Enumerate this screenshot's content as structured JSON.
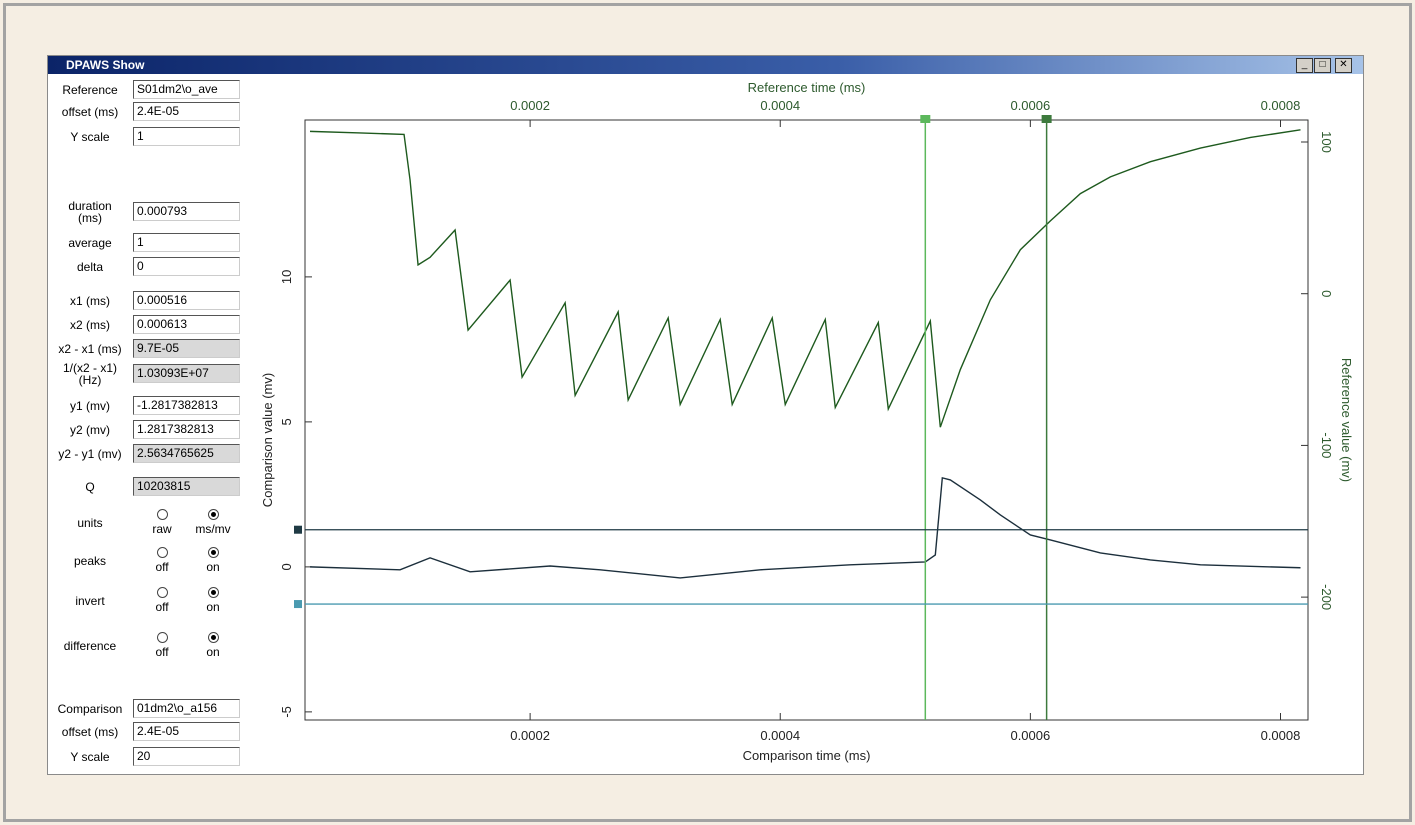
{
  "window_title": "DPAWS Show",
  "fields": [
    {
      "label": "Reference",
      "value": "S01dm2\\o_ave"
    },
    {
      "label": "offset (ms)",
      "value": "2.4E-05"
    },
    {
      "label": "Y scale",
      "value": "1"
    },
    {
      "label": "duration\n(ms)",
      "value": "0.000793"
    },
    {
      "label": "average",
      "value": "1"
    },
    {
      "label": "delta",
      "value": "0"
    },
    {
      "label": "x1 (ms)",
      "value": "0.000516"
    },
    {
      "label": "x2 (ms)",
      "value": "0.000613"
    },
    {
      "label": "x2 - x1 (ms)",
      "value": "9.7E-05",
      "readonly": true
    },
    {
      "label": "1/(x2 - x1)\n(Hz)",
      "value": "1.03093E+07",
      "readonly": true
    },
    {
      "label": "y1 (mv)",
      "value": "-1.2817382813"
    },
    {
      "label": "y2 (mv)",
      "value": "1.2817382813"
    },
    {
      "label": "y2 - y1 (mv)",
      "value": "2.5634765625",
      "readonly": true
    },
    {
      "label": "Q",
      "value": "10203815",
      "readonly": true
    },
    {
      "label": "Comparison",
      "value": "01dm2\\o_a156"
    },
    {
      "label": "offset (ms)",
      "value": "2.4E-05"
    },
    {
      "label": "Y scale",
      "value": "20"
    }
  ],
  "radios": [
    {
      "label": "units",
      "options": [
        "raw",
        "ms/mv"
      ],
      "selected": 1
    },
    {
      "label": "peaks",
      "options": [
        "off",
        "on"
      ],
      "selected": 1
    },
    {
      "label": "invert",
      "options": [
        "off",
        "on"
      ],
      "selected": 1
    },
    {
      "label": "difference",
      "options": [
        "off",
        "on"
      ],
      "selected": 1
    }
  ],
  "chart_data": {
    "type": "line",
    "x_label": "Comparison time (ms)",
    "x2_label": "Reference time (ms)",
    "y_label": "Comparison value (mv)",
    "y2_label": "Reference value (mv)",
    "xlim": [
      2e-05,
      0.000822
    ],
    "xticks": [
      0.0002,
      0.0004,
      0.0006,
      0.0008
    ],
    "ylim": [
      -5.28,
      15.41
    ],
    "yticks": [
      -5,
      0,
      5,
      10
    ],
    "y2lim": [
      -281,
      114.5
    ],
    "y2ticks": [
      -200,
      -100,
      0,
      100
    ],
    "series": [
      {
        "color": "#1e5a1e",
        "axis": "y2",
        "x": [
          2.4e-05,
          6.4e-05,
          9.92e-05,
          0.000104,
          0.0001104,
          0.00012,
          0.00014,
          0.0001504,
          0.000184,
          0.0001936,
          0.000228,
          0.000236,
          0.0002704,
          0.0002784,
          0.0003104,
          0.00032,
          0.000352,
          0.0003616,
          0.0003936,
          0.000404,
          0.000436,
          0.000444,
          0.0004784,
          0.0004864,
          0.00052,
          0.000528,
          0.000544,
          0.000568,
          0.000592,
          0.000616,
          0.00064,
          0.000664,
          0.000696,
          0.000736,
          0.000776,
          0.000816
        ],
        "values": [
          107,
          106,
          105,
          75,
          19,
          24,
          42,
          -24,
          9,
          -55,
          -6,
          -67,
          -12,
          -70,
          -16,
          -73,
          -17,
          -73,
          -16,
          -73,
          -17,
          -75,
          -19,
          -76,
          -18,
          -88,
          -50,
          -4,
          29,
          48,
          66,
          77,
          87,
          96,
          103,
          108
        ]
      },
      {
        "color": "#1c2f3c",
        "x": [
          2.4e-05,
          9.6e-05,
          0.00012,
          0.000152,
          0.000216,
          0.000256,
          0.00032,
          0.000384,
          0.000456,
          0.000516,
          0.000524,
          0.0005296,
          0.000536,
          0.00056,
          0.000576,
          0.0006,
          0.000616,
          0.000656,
          0.000696,
          0.000736,
          0.000816
        ],
        "values": [
          0,
          -0.1,
          0.31,
          -0.17,
          0.03,
          -0.1,
          -0.38,
          -0.1,
          0.07,
          0.17,
          0.41,
          3.07,
          3.0,
          2.31,
          1.79,
          1.1,
          0.93,
          0.48,
          0.24,
          0.07,
          -0.03
        ]
      }
    ],
    "cursors": {
      "x": [
        0.000516,
        0.000613
      ],
      "x_colors": [
        "#5cb85c",
        "#3d7a3d"
      ],
      "y": [
        -1.2817382813,
        1.2817382813
      ],
      "y_colors": [
        "#4a9ab0",
        "#1f3a44"
      ]
    }
  }
}
